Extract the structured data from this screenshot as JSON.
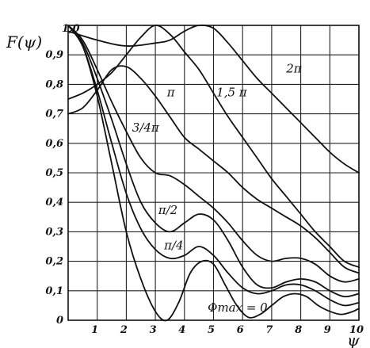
{
  "chart_data": {
    "type": "line",
    "ylabel": "F(ψ)",
    "xlabel": "ψ",
    "xlim": [
      0,
      10
    ],
    "ylim": [
      0,
      1.0
    ],
    "grid": true,
    "x_ticks": [
      {
        "v": 1,
        "label": "1"
      },
      {
        "v": 2,
        "label": "2"
      },
      {
        "v": 3,
        "label": "3"
      },
      {
        "v": 4,
        "label": "4"
      },
      {
        "v": 5,
        "label": "5"
      },
      {
        "v": 6,
        "label": "6"
      },
      {
        "v": 7,
        "label": "7"
      },
      {
        "v": 8,
        "label": "8"
      },
      {
        "v": 9,
        "label": "9"
      },
      {
        "v": 10,
        "label": "10"
      }
    ],
    "y_ticks": [
      {
        "v": 0,
        "label": "0"
      },
      {
        "v": 0.1,
        "label": "0,1"
      },
      {
        "v": 0.2,
        "label": "0,2"
      },
      {
        "v": 0.3,
        "label": "0,3"
      },
      {
        "v": 0.4,
        "label": "0,4"
      },
      {
        "v": 0.5,
        "label": "0,5"
      },
      {
        "v": 0.6,
        "label": "0,6"
      },
      {
        "v": 0.7,
        "label": "0,7"
      },
      {
        "v": 0.8,
        "label": "0,8"
      },
      {
        "v": 0.9,
        "label": "0,9"
      },
      {
        "v": 1.0,
        "label": "1,0"
      }
    ],
    "series": [
      {
        "name": "Φmax = 0",
        "label_at": [
          4.8,
          0.03
        ],
        "x": [
          0,
          0.5,
          1,
          1.5,
          2,
          2.5,
          3,
          3.4,
          3.8,
          4.2,
          4.6,
          5.0,
          5.4,
          5.8,
          6.2,
          6.6,
          7.0,
          7.4,
          7.8,
          8.2,
          8.6,
          9.0,
          9.4,
          9.8,
          10
        ],
        "y": [
          1.0,
          0.93,
          0.76,
          0.53,
          0.3,
          0.14,
          0.03,
          0.0,
          0.06,
          0.16,
          0.2,
          0.19,
          0.12,
          0.05,
          0.01,
          0.02,
          0.05,
          0.08,
          0.09,
          0.08,
          0.05,
          0.03,
          0.02,
          0.03,
          0.04
        ]
      },
      {
        "name": "π/4",
        "label_at": [
          3.3,
          0.24
        ],
        "x": [
          0,
          0.5,
          1,
          1.5,
          2,
          2.5,
          3,
          3.5,
          4,
          4.5,
          5,
          5.5,
          6,
          6.5,
          7,
          7.5,
          8,
          8.5,
          9,
          9.5,
          10
        ],
        "y": [
          1.0,
          0.93,
          0.78,
          0.6,
          0.43,
          0.31,
          0.24,
          0.21,
          0.22,
          0.25,
          0.22,
          0.16,
          0.11,
          0.09,
          0.1,
          0.12,
          0.12,
          0.1,
          0.07,
          0.05,
          0.06
        ]
      },
      {
        "name": "π/2",
        "label_at": [
          3.1,
          0.36
        ],
        "x": [
          0,
          0.5,
          1,
          1.5,
          2,
          2.5,
          3,
          3.5,
          4,
          4.5,
          5,
          5.5,
          6,
          6.5,
          7,
          7.5,
          8,
          8.5,
          9,
          9.5,
          10
        ],
        "y": [
          1.0,
          0.94,
          0.82,
          0.68,
          0.53,
          0.4,
          0.33,
          0.3,
          0.33,
          0.36,
          0.34,
          0.27,
          0.18,
          0.12,
          0.11,
          0.13,
          0.14,
          0.13,
          0.1,
          0.08,
          0.09
        ]
      },
      {
        "name": "3/4π",
        "label_at": [
          2.2,
          0.64
        ],
        "x": [
          0,
          0.5,
          1,
          1.5,
          2,
          2.5,
          3,
          3.5,
          4,
          4.5,
          5,
          5.5,
          6,
          6.5,
          7,
          7.5,
          8,
          8.5,
          9,
          9.5,
          10
        ],
        "y": [
          1.0,
          0.95,
          0.85,
          0.74,
          0.64,
          0.55,
          0.5,
          0.49,
          0.46,
          0.42,
          0.38,
          0.33,
          0.27,
          0.22,
          0.2,
          0.21,
          0.21,
          0.19,
          0.15,
          0.13,
          0.14
        ]
      },
      {
        "name": "π",
        "label_at": [
          3.4,
          0.76
        ],
        "x": [
          0,
          0.5,
          1,
          1.5,
          2,
          2.5,
          3,
          3.5,
          4,
          4.5,
          5,
          5.5,
          6,
          6.5,
          7,
          7.5,
          8,
          8.5,
          9,
          9.5,
          10
        ],
        "y": [
          0.7,
          0.72,
          0.78,
          0.85,
          0.86,
          0.82,
          0.76,
          0.69,
          0.62,
          0.58,
          0.54,
          0.5,
          0.45,
          0.41,
          0.38,
          0.35,
          0.32,
          0.28,
          0.23,
          0.18,
          0.16
        ]
      },
      {
        "name": "1,5 π",
        "label_at": [
          5.1,
          0.76
        ],
        "x": [
          0,
          0.5,
          1,
          1.5,
          2,
          2.5,
          3,
          3.5,
          4,
          4.5,
          5,
          5.5,
          6,
          6.5,
          7,
          7.5,
          8,
          8.5,
          9,
          9.5,
          10
        ],
        "y": [
          0.75,
          0.77,
          0.8,
          0.84,
          0.9,
          0.96,
          1.0,
          0.97,
          0.91,
          0.85,
          0.77,
          0.69,
          0.62,
          0.55,
          0.48,
          0.42,
          0.36,
          0.3,
          0.25,
          0.2,
          0.18
        ]
      },
      {
        "name": "2π",
        "label_at": [
          7.5,
          0.84
        ],
        "x": [
          0,
          1,
          2,
          3,
          3.5,
          4,
          4.5,
          5,
          5.5,
          6,
          6.5,
          7,
          7.5,
          8,
          8.5,
          9,
          9.5,
          10
        ],
        "y": [
          0.98,
          0.95,
          0.93,
          0.94,
          0.95,
          0.98,
          1.0,
          0.99,
          0.94,
          0.88,
          0.82,
          0.77,
          0.72,
          0.67,
          0.62,
          0.57,
          0.53,
          0.5
        ]
      }
    ]
  }
}
